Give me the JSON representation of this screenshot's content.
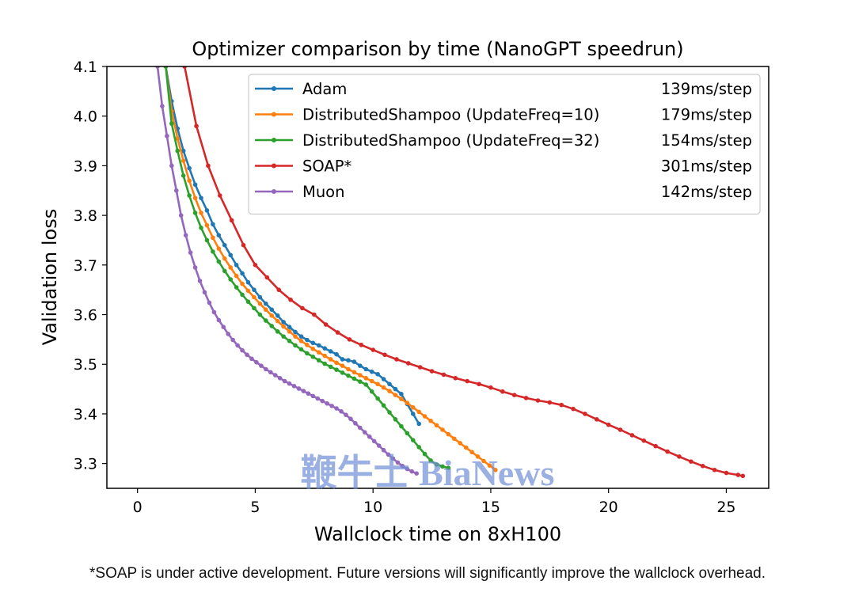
{
  "footnote": "*SOAP is under active development. Future versions will significantly improve the wallclock overhead.",
  "watermark": "鞭牛士 BiaNews",
  "chart_data": {
    "type": "line",
    "title": "Optimizer comparison by time (NanoGPT speedrun)",
    "xlabel": "Wallclock time on 8xH100",
    "ylabel": "Validation loss",
    "xlim": [
      -1.3,
      26.8
    ],
    "ylim": [
      3.25,
      4.1
    ],
    "xticks": [
      0,
      5,
      10,
      15,
      20,
      25
    ],
    "yticks": [
      3.3,
      3.4,
      3.5,
      3.6,
      3.7,
      3.8,
      3.9,
      4.0,
      4.1
    ],
    "grid": false,
    "legend_position": "top-right",
    "series": [
      {
        "name": "Adam",
        "rate": "139ms/step",
        "color": "#1f77b4",
        "x": [
          1.2,
          1.45,
          1.7,
          1.95,
          2.2,
          2.45,
          2.7,
          2.95,
          3.2,
          3.45,
          3.7,
          3.95,
          4.2,
          4.45,
          4.7,
          4.95,
          5.2,
          5.45,
          5.7,
          5.95,
          6.2,
          6.45,
          6.7,
          6.95,
          7.2,
          7.45,
          7.7,
          7.95,
          8.2,
          8.45,
          8.7,
          8.95,
          9.2,
          9.45,
          9.7,
          9.95,
          10.2,
          10.45,
          10.7,
          10.95,
          11.2,
          11.45,
          11.7,
          11.95
        ],
        "y": [
          4.1,
          4.03,
          3.975,
          3.93,
          3.895,
          3.862,
          3.835,
          3.81,
          3.782,
          3.76,
          3.74,
          3.72,
          3.7,
          3.683,
          3.665,
          3.65,
          3.635,
          3.622,
          3.61,
          3.598,
          3.585,
          3.575,
          3.565,
          3.556,
          3.549,
          3.543,
          3.538,
          3.532,
          3.526,
          3.52,
          3.51,
          3.508,
          3.505,
          3.497,
          3.49,
          3.485,
          3.48,
          3.47,
          3.46,
          3.45,
          3.44,
          3.42,
          3.4,
          3.38
        ]
      },
      {
        "name": "DistributedShampoo (UpdateFreq=10)",
        "rate": "179ms/step",
        "color": "#ff7f0e",
        "x": [
          1.2,
          1.45,
          1.7,
          1.95,
          2.2,
          2.45,
          2.7,
          2.95,
          3.2,
          3.45,
          3.7,
          3.95,
          4.2,
          4.45,
          4.7,
          4.95,
          5.2,
          5.45,
          5.7,
          5.95,
          6.2,
          6.45,
          6.7,
          6.95,
          7.2,
          7.45,
          7.7,
          7.95,
          8.2,
          8.45,
          8.7,
          8.95,
          9.2,
          9.45,
          9.7,
          9.95,
          10.2,
          10.45,
          10.7,
          10.95,
          11.2,
          11.45,
          11.7,
          11.95,
          12.2,
          12.45,
          12.7,
          12.95,
          13.2,
          13.45,
          13.7,
          13.95,
          14.2,
          14.45,
          14.7,
          14.95,
          15.2
        ],
        "y": [
          4.1,
          4.01,
          3.955,
          3.91,
          3.87,
          3.835,
          3.805,
          3.78,
          3.755,
          3.733,
          3.713,
          3.695,
          3.678,
          3.662,
          3.648,
          3.635,
          3.622,
          3.61,
          3.598,
          3.587,
          3.576,
          3.566,
          3.556,
          3.547,
          3.539,
          3.531,
          3.524,
          3.517,
          3.51,
          3.503,
          3.497,
          3.49,
          3.484,
          3.478,
          3.472,
          3.466,
          3.46,
          3.453,
          3.446,
          3.438,
          3.43,
          3.422,
          3.413,
          3.404,
          3.395,
          3.386,
          3.377,
          3.368,
          3.359,
          3.35,
          3.341,
          3.332,
          3.323,
          3.314,
          3.305,
          3.296,
          3.287
        ]
      },
      {
        "name": "DistributedShampoo (UpdateFreq=32)",
        "rate": "154ms/step",
        "color": "#2ca02c",
        "x": [
          1.2,
          1.45,
          1.7,
          1.95,
          2.2,
          2.45,
          2.7,
          2.95,
          3.2,
          3.45,
          3.7,
          3.95,
          4.2,
          4.45,
          4.7,
          4.95,
          5.2,
          5.45,
          5.7,
          5.95,
          6.2,
          6.45,
          6.7,
          6.95,
          7.2,
          7.45,
          7.7,
          7.95,
          8.2,
          8.45,
          8.7,
          8.95,
          9.2,
          9.45,
          9.7,
          9.95,
          10.2,
          10.45,
          10.7,
          10.95,
          11.2,
          11.45,
          11.7,
          11.95,
          12.2,
          12.45,
          12.7,
          12.95,
          13.2
        ],
        "y": [
          4.1,
          3.985,
          3.93,
          3.88,
          3.84,
          3.805,
          3.775,
          3.75,
          3.727,
          3.707,
          3.688,
          3.671,
          3.655,
          3.64,
          3.626,
          3.613,
          3.6,
          3.588,
          3.577,
          3.566,
          3.556,
          3.547,
          3.538,
          3.53,
          3.522,
          3.515,
          3.508,
          3.501,
          3.495,
          3.489,
          3.483,
          3.477,
          3.471,
          3.465,
          3.459,
          3.445,
          3.431,
          3.417,
          3.403,
          3.389,
          3.375,
          3.361,
          3.347,
          3.333,
          3.319,
          3.306,
          3.298,
          3.294,
          3.291
        ]
      },
      {
        "name": "SOAP*",
        "rate": "301ms/step",
        "color": "#d62728",
        "x": [
          2.0,
          2.5,
          3.0,
          3.5,
          4.0,
          4.5,
          5.0,
          5.5,
          6.0,
          6.5,
          7.0,
          7.5,
          8.0,
          8.5,
          9.0,
          9.5,
          10.0,
          10.5,
          11.0,
          11.5,
          12.0,
          12.5,
          13.0,
          13.5,
          14.0,
          14.5,
          15.0,
          15.5,
          16.0,
          16.5,
          17.0,
          17.5,
          18.0,
          18.5,
          19.0,
          19.5,
          20.0,
          20.5,
          21.0,
          21.5,
          22.0,
          22.5,
          23.0,
          23.5,
          24.0,
          24.5,
          25.0,
          25.5,
          25.7
        ],
        "y": [
          4.1,
          3.98,
          3.9,
          3.84,
          3.79,
          3.74,
          3.7,
          3.675,
          3.65,
          3.63,
          3.613,
          3.6,
          3.58,
          3.564,
          3.55,
          3.539,
          3.529,
          3.519,
          3.51,
          3.502,
          3.494,
          3.486,
          3.479,
          3.472,
          3.466,
          3.46,
          3.453,
          3.445,
          3.438,
          3.432,
          3.427,
          3.423,
          3.418,
          3.41,
          3.4,
          3.389,
          3.378,
          3.368,
          3.357,
          3.346,
          3.335,
          3.324,
          3.314,
          3.304,
          3.295,
          3.287,
          3.281,
          3.277,
          3.275
        ]
      },
      {
        "name": "Muon",
        "rate": "142ms/step",
        "color": "#9467bd",
        "x": [
          0.85,
          1.05,
          1.25,
          1.45,
          1.65,
          1.85,
          2.05,
          2.25,
          2.45,
          2.65,
          2.85,
          3.05,
          3.25,
          3.45,
          3.65,
          3.85,
          4.05,
          4.25,
          4.45,
          4.65,
          4.85,
          5.05,
          5.25,
          5.45,
          5.65,
          5.85,
          6.05,
          6.25,
          6.45,
          6.65,
          6.85,
          7.05,
          7.25,
          7.45,
          7.65,
          7.85,
          8.05,
          8.25,
          8.45,
          8.65,
          8.85,
          9.05,
          9.25,
          9.45,
          9.65,
          9.85,
          10.05,
          10.25,
          10.45,
          10.65,
          10.85,
          11.05,
          11.25,
          11.45,
          11.65,
          11.85
        ],
        "y": [
          4.1,
          4.02,
          3.96,
          3.9,
          3.85,
          3.8,
          3.76,
          3.725,
          3.695,
          3.668,
          3.645,
          3.624,
          3.605,
          3.589,
          3.575,
          3.561,
          3.549,
          3.538,
          3.528,
          3.519,
          3.511,
          3.504,
          3.497,
          3.49,
          3.484,
          3.478,
          3.472,
          3.466,
          3.461,
          3.456,
          3.451,
          3.446,
          3.441,
          3.436,
          3.431,
          3.426,
          3.421,
          3.416,
          3.411,
          3.405,
          3.398,
          3.39,
          3.381,
          3.372,
          3.363,
          3.354,
          3.345,
          3.336,
          3.327,
          3.318,
          3.31,
          3.302,
          3.295,
          3.289,
          3.284,
          3.28
        ]
      }
    ]
  }
}
